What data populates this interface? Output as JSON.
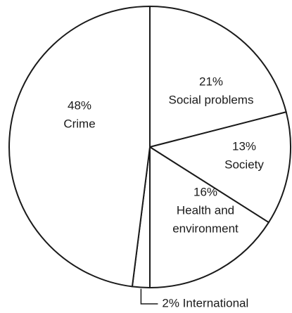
{
  "chart_data": {
    "type": "pie",
    "title": "",
    "start_angle_deg": 0,
    "direction": "clockwise",
    "slices": [
      {
        "label": "Social problems",
        "percent_label": "21%",
        "value": 21
      },
      {
        "label": "Society",
        "percent_label": "13%",
        "value": 13
      },
      {
        "label": "Health and environment",
        "label_lines": [
          "Health and",
          "environment"
        ],
        "percent_label": "16%",
        "value": 16
      },
      {
        "label": "International",
        "percent_label": "2%",
        "value": 2,
        "callout": "2% International"
      },
      {
        "label": "Crime",
        "percent_label": "48%",
        "value": 48
      }
    ],
    "colors": {
      "fill": "#ffffff",
      "stroke": "#1a1a1a",
      "text": "#1a1a1a"
    }
  }
}
